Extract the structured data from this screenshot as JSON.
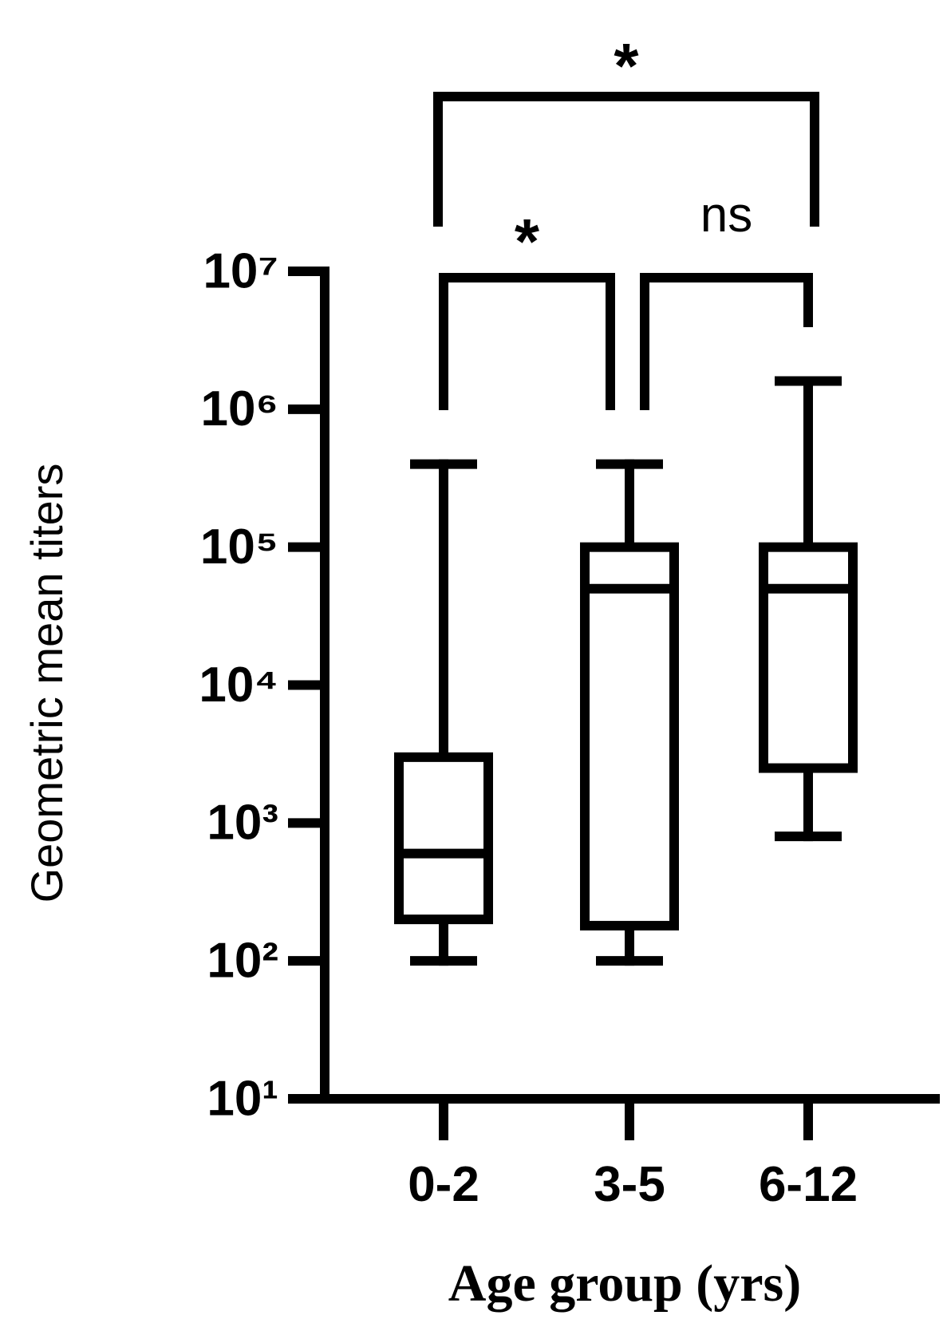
{
  "chart_data": {
    "type": "box",
    "y_label": "Geometric mean titers",
    "x_label": "Age group (yrs)",
    "categories": [
      "0-2",
      "3-5",
      "6-12"
    ],
    "boxes": [
      {
        "min": 100,
        "q1": 200,
        "median": 600,
        "q3": 3000,
        "max": 400000
      },
      {
        "min": 100,
        "q1": 180,
        "median": 50000,
        "q3": 100000,
        "max": 400000
      },
      {
        "min": 800,
        "q1": 2500,
        "median": 50000,
        "q3": 100000,
        "max": 1600000
      }
    ],
    "color": "#000000",
    "y_scale": "log",
    "ylim": [
      10,
      10000000
    ],
    "yticks": [
      {
        "value": 10,
        "label": "10¹"
      },
      {
        "value": 100,
        "label": "10²"
      },
      {
        "value": 1000,
        "label": "10³"
      },
      {
        "value": 10000,
        "label": "10⁴"
      },
      {
        "value": 100000,
        "label": "10⁵"
      },
      {
        "value": 1000000,
        "label": "10⁶"
      },
      {
        "value": 10000000,
        "label": "10⁷"
      }
    ],
    "comparisons": [
      {
        "from": "0-2",
        "to": "3-5",
        "label": "*"
      },
      {
        "from": "3-5",
        "to": "6-12",
        "label": "ns"
      },
      {
        "from": "0-2",
        "to": "6-12",
        "label": "*"
      }
    ]
  }
}
